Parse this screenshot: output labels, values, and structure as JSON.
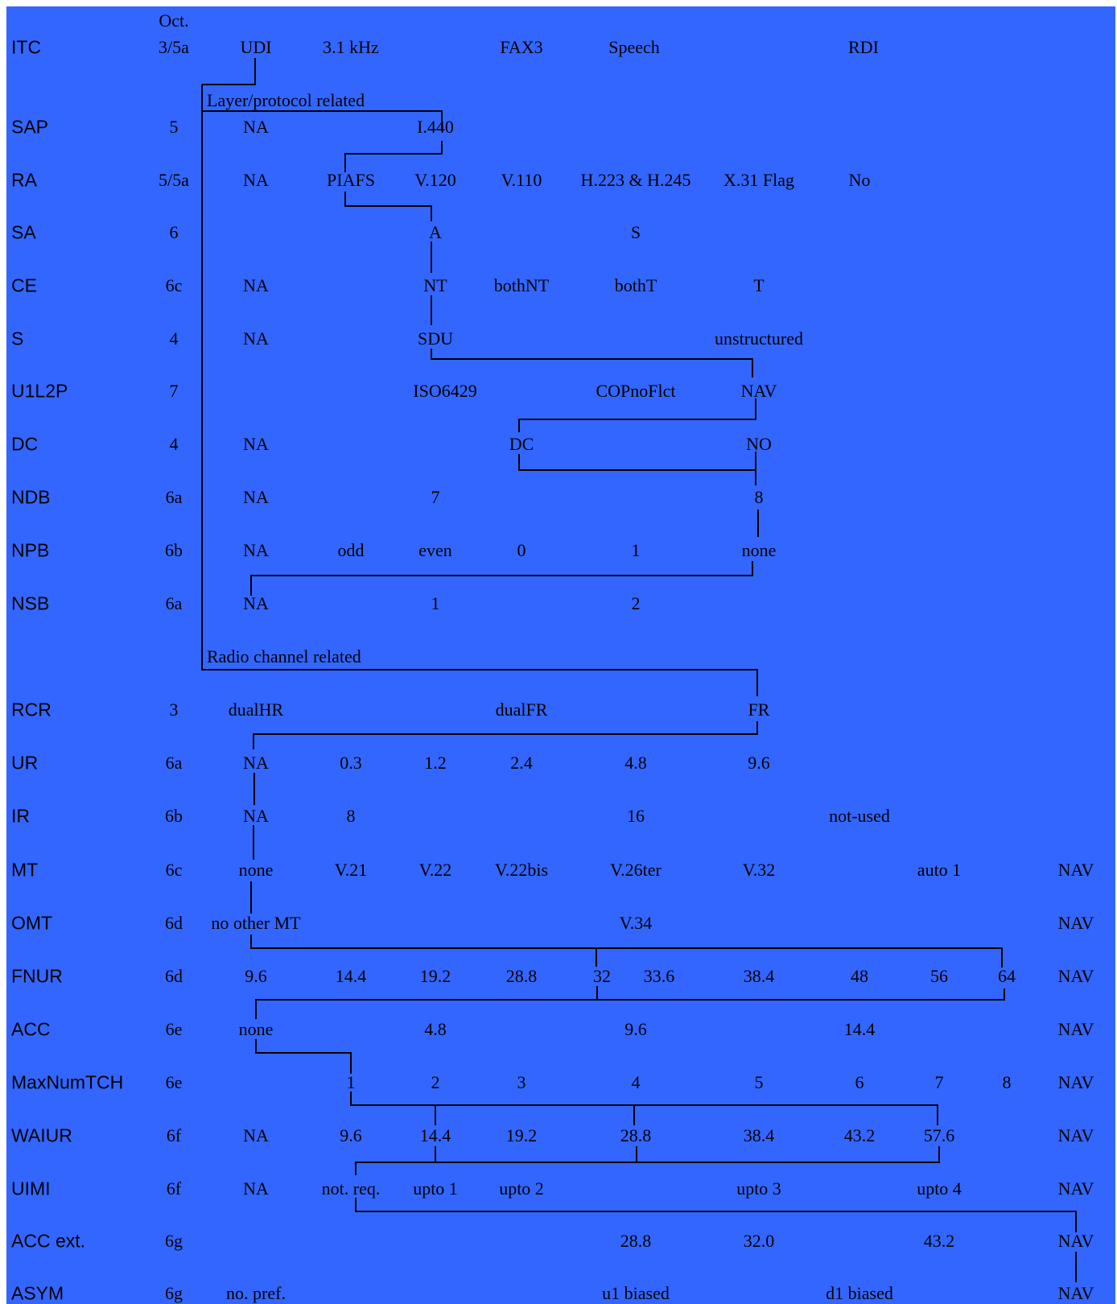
{
  "header": {
    "octet_label": "Oct."
  },
  "notes": {
    "layer_protocol": "Layer/protocol related",
    "radio_channel": "Radio channel related"
  },
  "rows": [
    {
      "param": "ITC",
      "octet": "3/5a",
      "values": [
        "UDI",
        "3.1 kHz",
        "FAX3",
        "Speech",
        "RDI"
      ]
    },
    {
      "param": "SAP",
      "octet": "5",
      "values": [
        "NA",
        "I.440"
      ]
    },
    {
      "param": "RA",
      "octet": "5/5a",
      "values": [
        "NA",
        "PIAFS",
        "V.120",
        "V.110",
        "H.223 & H.245",
        "X.31 Flag",
        "No"
      ]
    },
    {
      "param": "SA",
      "octet": "6",
      "values": [
        "A",
        "S"
      ]
    },
    {
      "param": "CE",
      "octet": "6c",
      "values": [
        "NA",
        "NT",
        "bothNT",
        "bothT",
        "T"
      ]
    },
    {
      "param": "S",
      "octet": "4",
      "values": [
        "NA",
        "SDU",
        "unstructured"
      ]
    },
    {
      "param": "U1L2P",
      "octet": "7",
      "values": [
        "ISO6429",
        "COPnoFlct",
        "NAV"
      ]
    },
    {
      "param": "DC",
      "octet": "4",
      "values": [
        "NA",
        "DC",
        "NO"
      ]
    },
    {
      "param": "NDB",
      "octet": "6a",
      "values": [
        "NA",
        "7",
        "8"
      ]
    },
    {
      "param": "NPB",
      "octet": "6b",
      "values": [
        "NA",
        "odd",
        "even",
        "0",
        "1",
        "none"
      ]
    },
    {
      "param": "NSB",
      "octet": "6a",
      "values": [
        "NA",
        "1",
        "2"
      ]
    },
    {
      "param": "RCR",
      "octet": "3",
      "values": [
        "dualHR",
        "dualFR",
        "FR"
      ]
    },
    {
      "param": "UR",
      "octet": "6a",
      "values": [
        "NA",
        "0.3",
        "1.2",
        "2.4",
        "4.8",
        "9.6"
      ]
    },
    {
      "param": "IR",
      "octet": "6b",
      "values": [
        "NA",
        "8",
        "16",
        "not-used"
      ]
    },
    {
      "param": "MT",
      "octet": "6c",
      "values": [
        "none",
        "V.21",
        "V.22",
        "V.22bis",
        "V.26ter",
        "V.32",
        "auto 1",
        "NAV"
      ]
    },
    {
      "param": "OMT",
      "octet": "6d",
      "values": [
        "no other MT",
        "V.34",
        "NAV"
      ]
    },
    {
      "param": "FNUR",
      "octet": "6d",
      "values": [
        "9.6",
        "14.4",
        "19.2",
        "28.8",
        "32",
        "33.6",
        "38.4",
        "48",
        "56",
        "64",
        "NAV"
      ]
    },
    {
      "param": "ACC",
      "octet": "6e",
      "values": [
        "none",
        "4.8",
        "9.6",
        "14.4",
        "NAV"
      ]
    },
    {
      "param": "MaxNumTCH",
      "octet": "6e",
      "values": [
        "1",
        "2",
        "3",
        "4",
        "5",
        "6",
        "7",
        "8",
        "NAV"
      ]
    },
    {
      "param": "WAIUR",
      "octet": "6f",
      "values": [
        "NA",
        "9.6",
        "14.4",
        "19.2",
        "28.8",
        "38.4",
        "43.2",
        "57.6",
        "NAV"
      ]
    },
    {
      "param": "UIMI",
      "octet": "6f",
      "values": [
        "NA",
        "not. req.",
        "upto 1",
        "upto 2",
        "upto 3",
        "upto 4",
        "NAV"
      ]
    },
    {
      "param": "ACC ext.",
      "octet": "6g",
      "values": [
        "28.8",
        "32.0",
        "43.2",
        "NAV"
      ]
    },
    {
      "param": "ASYM",
      "octet": "6g",
      "values": [
        "no. pref.",
        "u1 biased",
        "d1 biased",
        "NAV"
      ]
    }
  ]
}
